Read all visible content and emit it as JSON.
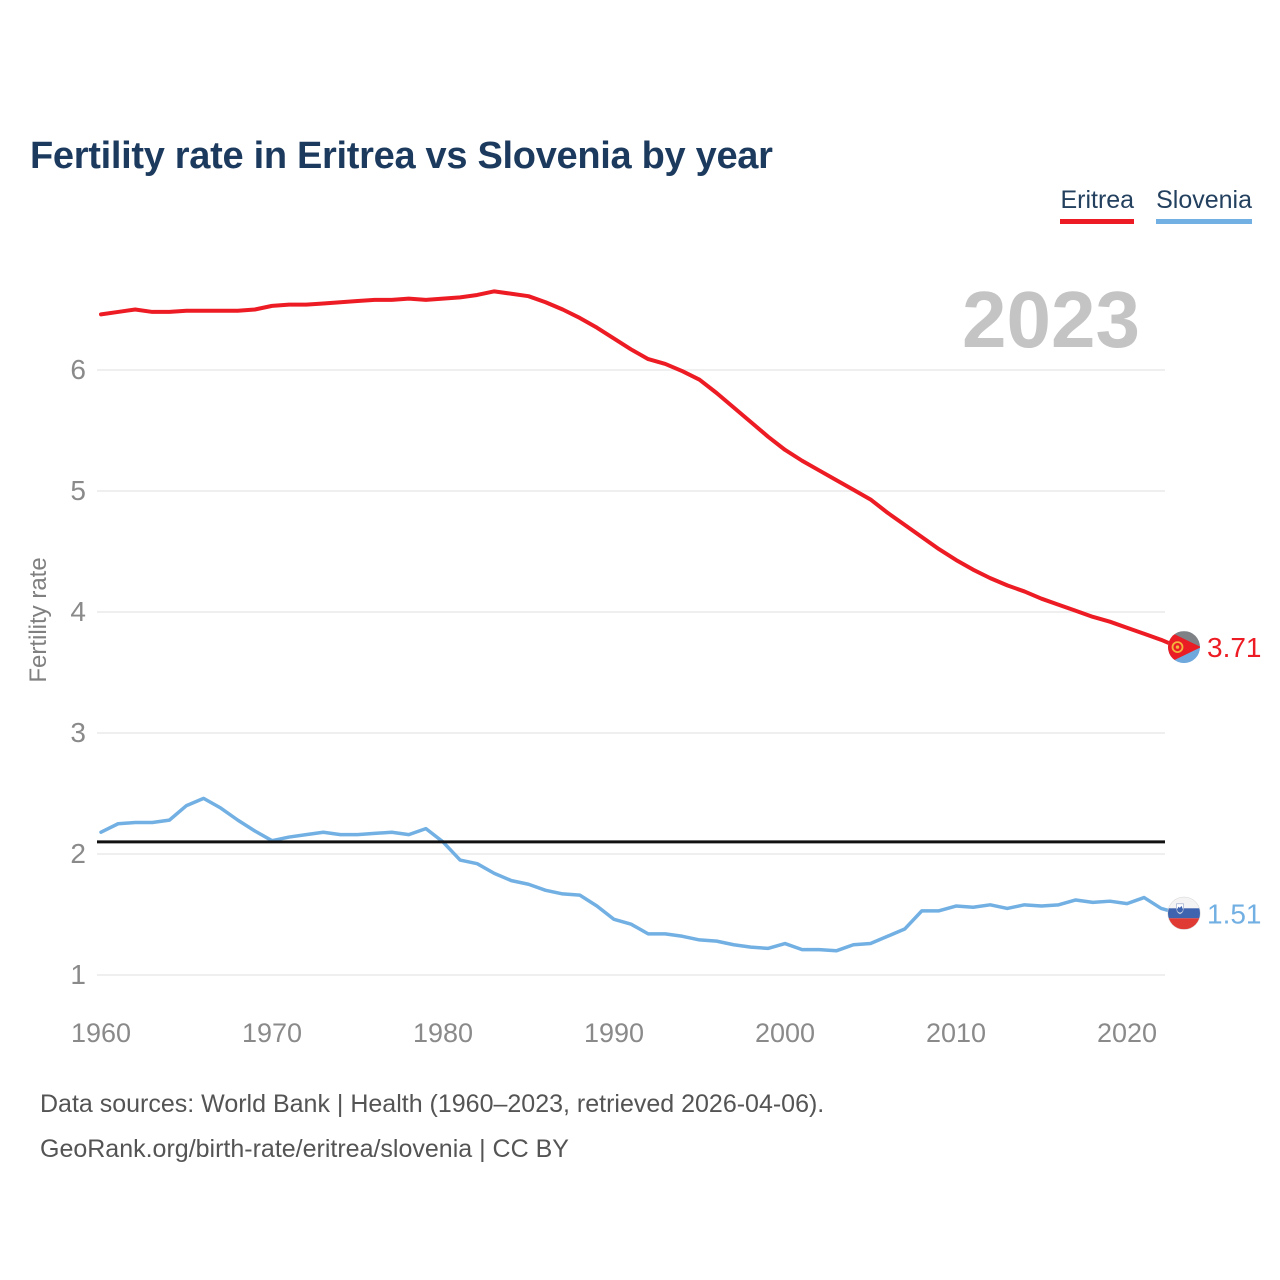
{
  "header": {
    "title": "Fertility rate in Eritrea vs Slovenia by year"
  },
  "legend": {
    "items": [
      {
        "label": "Eritrea",
        "color": "#ed1c24"
      },
      {
        "label": "Slovenia",
        "color": "#72b0e3"
      }
    ]
  },
  "watermark": "2023",
  "footer": {
    "line1": "Data sources: World Bank | Health (1960–2023, retrieved 2026-04-06).",
    "line2": "GeoRank.org/birth-rate/eritrea/slovenia | CC BY"
  },
  "chart_data": {
    "type": "line",
    "title": "Fertility rate in Eritrea vs Slovenia by year",
    "xlabel": "",
    "ylabel": "Fertility rate",
    "xlim": [
      1960,
      2023
    ],
    "ylim": [
      0.8,
      7.0
    ],
    "x_ticks": [
      1960,
      1970,
      1980,
      1990,
      2000,
      2010,
      2020
    ],
    "y_ticks": [
      1,
      2,
      3,
      4,
      5,
      6
    ],
    "grid": "horizontal",
    "legend_position": "top-right",
    "reference_line": {
      "name": "replacement-level-fertility",
      "value": 2.1,
      "color": "#111111"
    },
    "years": [
      1960,
      1961,
      1962,
      1963,
      1964,
      1965,
      1966,
      1967,
      1968,
      1969,
      1970,
      1971,
      1972,
      1973,
      1974,
      1975,
      1976,
      1977,
      1978,
      1979,
      1980,
      1981,
      1982,
      1983,
      1984,
      1985,
      1986,
      1987,
      1988,
      1989,
      1990,
      1991,
      1992,
      1993,
      1994,
      1995,
      1996,
      1997,
      1998,
      1999,
      2000,
      2001,
      2002,
      2003,
      2004,
      2005,
      2006,
      2007,
      2008,
      2009,
      2010,
      2011,
      2012,
      2013,
      2014,
      2015,
      2016,
      2017,
      2018,
      2019,
      2020,
      2021,
      2022,
      2023
    ],
    "series": [
      {
        "name": "Eritrea",
        "color": "#ed1c24",
        "end_label": "3.71",
        "end_value": 3.71,
        "values": [
          6.46,
          6.48,
          6.5,
          6.48,
          6.48,
          6.49,
          6.49,
          6.49,
          6.49,
          6.5,
          6.53,
          6.54,
          6.54,
          6.55,
          6.56,
          6.57,
          6.58,
          6.58,
          6.59,
          6.58,
          6.59,
          6.6,
          6.62,
          6.65,
          6.63,
          6.61,
          6.56,
          6.5,
          6.43,
          6.35,
          6.26,
          6.17,
          6.09,
          6.05,
          5.99,
          5.92,
          5.81,
          5.69,
          5.57,
          5.45,
          5.34,
          5.25,
          5.17,
          5.09,
          5.01,
          4.93,
          4.82,
          4.72,
          4.62,
          4.52,
          4.43,
          4.35,
          4.28,
          4.22,
          4.17,
          4.11,
          4.06,
          4.01,
          3.96,
          3.92,
          3.87,
          3.82,
          3.77,
          3.71
        ]
      },
      {
        "name": "Slovenia",
        "color": "#72b0e3",
        "end_label": "1.51",
        "end_value": 1.51,
        "values": [
          2.18,
          2.25,
          2.26,
          2.26,
          2.28,
          2.4,
          2.46,
          2.38,
          2.28,
          2.19,
          2.11,
          2.14,
          2.16,
          2.18,
          2.16,
          2.16,
          2.17,
          2.18,
          2.16,
          2.21,
          2.1,
          1.95,
          1.92,
          1.84,
          1.78,
          1.75,
          1.7,
          1.67,
          1.66,
          1.57,
          1.46,
          1.42,
          1.34,
          1.34,
          1.32,
          1.29,
          1.28,
          1.25,
          1.23,
          1.22,
          1.26,
          1.21,
          1.21,
          1.2,
          1.25,
          1.26,
          1.32,
          1.38,
          1.53,
          1.53,
          1.57,
          1.56,
          1.58,
          1.55,
          1.58,
          1.57,
          1.58,
          1.62,
          1.6,
          1.61,
          1.59,
          1.64,
          1.55,
          1.51
        ]
      }
    ]
  }
}
